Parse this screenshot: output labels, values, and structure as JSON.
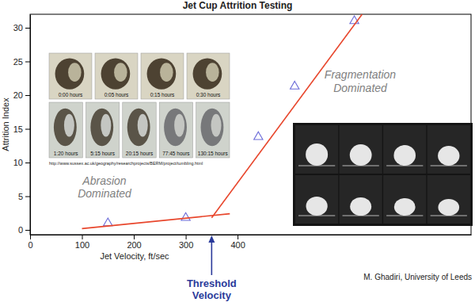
{
  "chart_data": {
    "type": "scatter",
    "title": "Jet Cup Attrition Testing",
    "x_label": "Jet Velocity, ft/sec",
    "y_label": "Attrition Index",
    "xlim": [
      0,
      850
    ],
    "xticks": [
      0,
      100,
      200,
      300,
      400
    ],
    "ylim": [
      -0.7,
      32
    ],
    "yticks": [
      0,
      5,
      10,
      15,
      20,
      25,
      30
    ],
    "grid": false,
    "series": [
      {
        "type": "scatter",
        "marker": "triangle",
        "color": "#6a6ad8",
        "x": [
          150,
          300,
          440,
          510,
          625
        ],
        "values": [
          1,
          1.8,
          13.8,
          21.3,
          31
        ]
      },
      {
        "type": "line",
        "line_style": "solid",
        "color": "#e8462c",
        "x": [
          100,
          385
        ],
        "values": [
          0.2,
          2.4
        ]
      },
      {
        "type": "line",
        "line_style": "solid",
        "color": "#e8462c",
        "x": [
          350,
          640
        ],
        "values": [
          1.8,
          32
        ]
      }
    ],
    "annotations": [
      {
        "lines": [
          "Abrasion",
          "Dominated"
        ]
      },
      {
        "lines": [
          "Fragmentation",
          "Dominated"
        ]
      },
      {
        "lines": [
          "Threshold",
          "Velocity"
        ],
        "x": 350
      }
    ],
    "photo_captions": [
      "0:00 hours",
      "0:05 hours",
      "0:15 hours",
      "0:30 hours",
      "1:20 hours",
      "5:15 hours",
      "20:15 hours",
      "77:45 hours",
      "130:15 hours"
    ],
    "photo_source": "http://www.sussex.ac.uk/geography/researchprojects/BERM/project/tumbling.html",
    "photo_credit": "M. Ghadiri, University of Leeds"
  }
}
